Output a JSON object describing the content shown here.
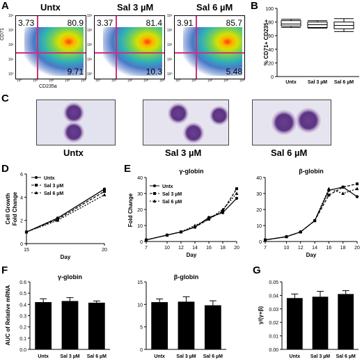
{
  "panel_letters": {
    "a": "A",
    "b": "B",
    "c": "C",
    "d": "D",
    "e": "E",
    "f": "F",
    "g": "G"
  },
  "flow": {
    "titles": [
      "Untx",
      "Sal 3 µM",
      "Sal 6 µM"
    ],
    "ylabel": "CD71",
    "xlabel": "CD235a",
    "quadrants": [
      {
        "ul": "3.73",
        "ur": "80.9",
        "lr": "9.71"
      },
      {
        "ul": "3.37",
        "ur": "81.4",
        "lr": "10.3"
      },
      {
        "ul": "3.91",
        "ur": "85.7",
        "lr": "5.48"
      }
    ],
    "ticks": [
      "10⁰",
      "10¹",
      "10²",
      "10³",
      "10⁴"
    ]
  },
  "cytospin": {
    "labels": [
      "Untx",
      "Sal 3 µM",
      "Sal 6 µM"
    ]
  },
  "chart_data": [
    {
      "panel": "B",
      "type": "box",
      "ylabel": "% CD71+ CD235+",
      "ylim": [
        0,
        100
      ],
      "yticks": [
        "0",
        "20",
        "40",
        "60",
        "80",
        "100"
      ],
      "categories": [
        "Untx",
        "Sal 3 µM",
        "Sal 6 µM"
      ],
      "boxes": [
        {
          "min": 72,
          "q1": 74,
          "median": 77,
          "q3": 82,
          "max": 84
        },
        {
          "min": 71,
          "q1": 72,
          "median": 76,
          "q3": 80,
          "max": 82
        },
        {
          "min": 66,
          "q1": 70,
          "median": 75,
          "q3": 80,
          "max": 85
        }
      ]
    },
    {
      "panel": "D",
      "type": "line",
      "ylabel": "Cell Growth Fold Change",
      "xlabel": "Day",
      "xlim": [
        15,
        20
      ],
      "ylim": [
        0,
        6
      ],
      "xticks": [
        "15",
        "20"
      ],
      "yticks": [
        "0",
        "2",
        "4",
        "6"
      ],
      "x": [
        15,
        17,
        20
      ],
      "series": [
        {
          "name": "Untx",
          "values": [
            1,
            2.2,
            4.7
          ]
        },
        {
          "name": "Sal 3 µM",
          "values": [
            1,
            2.1,
            4.5
          ]
        },
        {
          "name": "Sal 6 µM",
          "values": [
            1,
            2.0,
            4.2
          ]
        }
      ]
    },
    {
      "panel": "E1",
      "type": "line",
      "title": "γ-globin",
      "ylabel": "Fold Change",
      "xlabel": "Day",
      "xlim": [
        7,
        20
      ],
      "ylim": [
        0,
        40
      ],
      "xticks": [
        "7",
        "10",
        "12",
        "14",
        "16",
        "18",
        "20"
      ],
      "yticks": [
        "0",
        "10",
        "20",
        "30",
        "40"
      ],
      "x": [
        7,
        10,
        12,
        14,
        16,
        18,
        20
      ],
      "series": [
        {
          "name": "Untx",
          "values": [
            1,
            4,
            6,
            9,
            15,
            18,
            27
          ]
        },
        {
          "name": "Sal 3 µM",
          "values": [
            1,
            4,
            6,
            9,
            14,
            19,
            33
          ]
        },
        {
          "name": "Sal 6 µM",
          "values": [
            1,
            4,
            6,
            10,
            14,
            20,
            30
          ]
        }
      ]
    },
    {
      "panel": "E2",
      "type": "line",
      "title": "β-globin",
      "xlabel": "Day",
      "xlim": [
        7,
        20
      ],
      "ylim": [
        0,
        40
      ],
      "xticks": [
        "7",
        "10",
        "12",
        "14",
        "16",
        "18",
        "20"
      ],
      "yticks": [
        "0",
        "10",
        "20",
        "30",
        "40"
      ],
      "x": [
        7,
        10,
        12,
        14,
        16,
        18,
        20
      ],
      "series": [
        {
          "name": "Untx",
          "values": [
            1,
            3,
            6,
            13,
            32,
            34,
            28
          ]
        },
        {
          "name": "Sal 3 µM",
          "values": [
            1,
            3,
            6,
            13,
            29,
            34,
            36
          ]
        },
        {
          "name": "Sal 6 µM",
          "values": [
            1,
            3,
            6,
            13,
            33,
            30,
            33
          ]
        }
      ]
    },
    {
      "panel": "F1",
      "type": "bar",
      "title": "γ-globin",
      "ylabel": "AUC of Relative mRNA",
      "ylim": [
        0,
        0.6
      ],
      "yticks": [
        "0.0",
        "0.1",
        "0.2",
        "0.3",
        "0.4",
        "0.5",
        "0.6"
      ],
      "categories": [
        "Untx",
        "Sal 3 µM",
        "Sal 6 µM"
      ],
      "values": [
        0.42,
        0.43,
        0.415
      ],
      "errors": [
        0.03,
        0.03,
        0.015
      ]
    },
    {
      "panel": "F2",
      "type": "bar",
      "title": "β-globin",
      "ylim": [
        0,
        15
      ],
      "yticks": [
        "0",
        "5",
        "10",
        "15"
      ],
      "categories": [
        "Untx",
        "Sal 3 µM",
        "Sal 6 µM"
      ],
      "values": [
        10.5,
        10.6,
        9.8
      ],
      "errors": [
        0.7,
        1.1,
        1.0
      ]
    },
    {
      "panel": "G",
      "type": "bar",
      "ylabel": "γ/(γ+β)",
      "ylim": [
        0,
        0.05
      ],
      "yticks": [
        "0.00",
        "0.01",
        "0.02",
        "0.03",
        "0.04",
        "0.05"
      ],
      "categories": [
        "Untx",
        "Sal 3 µM",
        "Sal 6 µM"
      ],
      "values": [
        0.038,
        0.039,
        0.041
      ],
      "errors": [
        0.003,
        0.004,
        0.0025
      ]
    }
  ]
}
